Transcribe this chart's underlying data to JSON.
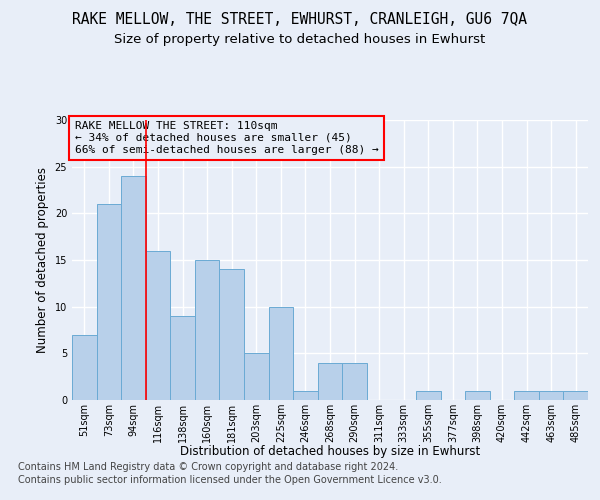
{
  "title": "RAKE MELLOW, THE STREET, EWHURST, CRANLEIGH, GU6 7QA",
  "subtitle": "Size of property relative to detached houses in Ewhurst",
  "xlabel": "Distribution of detached houses by size in Ewhurst",
  "ylabel": "Number of detached properties",
  "categories": [
    "51sqm",
    "73sqm",
    "94sqm",
    "116sqm",
    "138sqm",
    "160sqm",
    "181sqm",
    "203sqm",
    "225sqm",
    "246sqm",
    "268sqm",
    "290sqm",
    "311sqm",
    "333sqm",
    "355sqm",
    "377sqm",
    "398sqm",
    "420sqm",
    "442sqm",
    "463sqm",
    "485sqm"
  ],
  "values": [
    7,
    21,
    24,
    16,
    9,
    15,
    14,
    5,
    10,
    1,
    4,
    4,
    0,
    0,
    1,
    0,
    1,
    0,
    1,
    1,
    1
  ],
  "bar_color": "#b8d0ea",
  "bar_edge_color": "#6aaad4",
  "annotation_text_line1": "RAKE MELLOW THE STREET: 110sqm",
  "annotation_text_line2": "← 34% of detached houses are smaller (45)",
  "annotation_text_line3": "66% of semi-detached houses are larger (88) →",
  "vline_pos": 2.5,
  "ylim": [
    0,
    30
  ],
  "yticks": [
    0,
    5,
    10,
    15,
    20,
    25,
    30
  ],
  "footnote1": "Contains HM Land Registry data © Crown copyright and database right 2024.",
  "footnote2": "Contains public sector information licensed under the Open Government Licence v3.0.",
  "background_color": "#e8eef8",
  "grid_color": "#ffffff",
  "title_fontsize": 10.5,
  "subtitle_fontsize": 9.5,
  "axis_fontsize": 8.5,
  "tick_fontsize": 7,
  "annotation_fontsize": 8,
  "footnote_fontsize": 7
}
